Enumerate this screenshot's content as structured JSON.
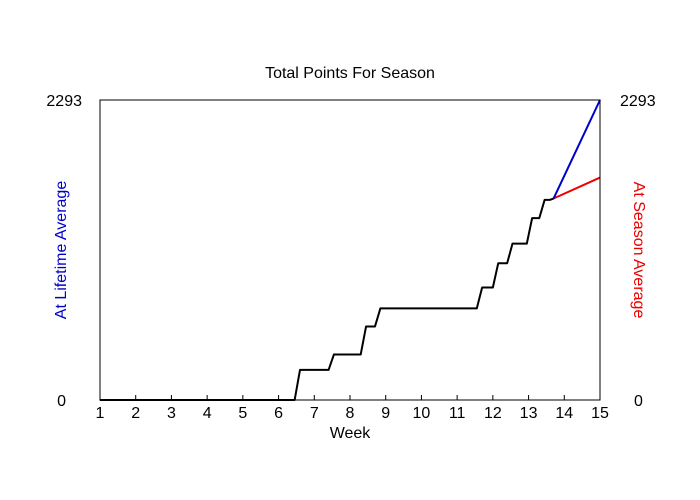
{
  "chart_data": {
    "type": "line",
    "title": "Total Points For Season",
    "xlabel": "Week",
    "ylabel_left": "At Lifetime Average",
    "ylabel_right": "At Season Average",
    "xlim": [
      1,
      15
    ],
    "ylim": [
      0,
      2293
    ],
    "x_ticks": [
      "1",
      "2",
      "3",
      "4",
      "5",
      "6",
      "7",
      "8",
      "9",
      "10",
      "11",
      "12",
      "13",
      "14",
      "15"
    ],
    "y_ticks_left": [
      "0",
      "2293"
    ],
    "y_ticks_right": [
      "0",
      "2293"
    ],
    "colors": {
      "actual": "#000000",
      "lifetime": "#0000cc",
      "season": "#ee0000",
      "lifetime_label": "#0000cc",
      "season_label": "#ee0000"
    },
    "series": [
      {
        "key": "actual",
        "values": [
          [
            1,
            0
          ],
          [
            6.45,
            0
          ],
          [
            6.6,
            230
          ],
          [
            7.4,
            230
          ],
          [
            7.55,
            348
          ],
          [
            8.3,
            348
          ],
          [
            8.45,
            562
          ],
          [
            8.7,
            562
          ],
          [
            8.85,
            700
          ],
          [
            11.55,
            700
          ],
          [
            11.7,
            860
          ],
          [
            12.0,
            860
          ],
          [
            12.15,
            1045
          ],
          [
            12.4,
            1045
          ],
          [
            12.55,
            1195
          ],
          [
            12.95,
            1195
          ],
          [
            13.1,
            1390
          ],
          [
            13.3,
            1390
          ],
          [
            13.45,
            1530
          ],
          [
            13.6,
            1530
          ],
          [
            13.7,
            1540
          ]
        ]
      },
      {
        "key": "lifetime",
        "values": [
          [
            13.7,
            1540
          ],
          [
            15,
            2293
          ]
        ]
      },
      {
        "key": "season",
        "values": [
          [
            13.7,
            1540
          ],
          [
            15,
            1700
          ]
        ]
      }
    ]
  }
}
